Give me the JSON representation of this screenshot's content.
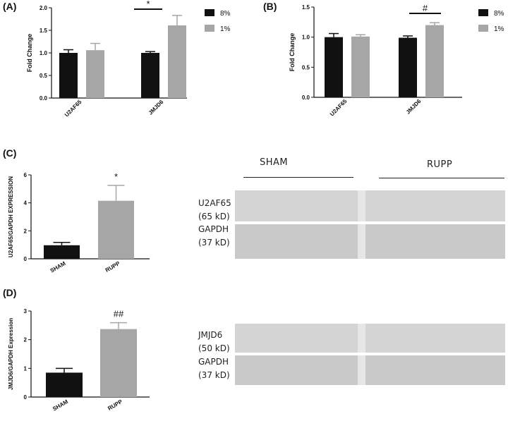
{
  "panel_labels": {
    "a": "(A)",
    "b": "(B)",
    "c": "(C)",
    "d": "(D)"
  },
  "blot": {
    "sham_label": "SHAM",
    "rupp_label": "RUPP",
    "u2af65_name": "U2AF65",
    "u2af65_kd": "(65 kD)",
    "gapdh_name": "GAPDH",
    "gapdh_kd": "(37 kD)",
    "jmjd6_name": "JMJD6",
    "jmjd6_kd": "(50 kD)",
    "gapdh2_name": "GAPDH",
    "gapdh2_kd": "(37 kD)"
  },
  "colors": {
    "black_bar": "#111111",
    "gray_bar": "#a6a6a6"
  },
  "chart_data": [
    {
      "id": "A",
      "type": "bar",
      "title": "",
      "ylabel": "Fold Change",
      "xlabel": "",
      "ylim": [
        0,
        2.0
      ],
      "yticks": [
        "0.0",
        "0.5",
        "1.0",
        "1.5",
        "2.0"
      ],
      "ytick_values": [
        0,
        0.5,
        1.0,
        1.5,
        2.0
      ],
      "categories": [
        "U2AF65",
        "JMJD6"
      ],
      "series": [
        {
          "name": "8%",
          "color": "#111111",
          "values": [
            1.0,
            1.0
          ],
          "errors": [
            0.07,
            0.03
          ]
        },
        {
          "name": "1%",
          "color": "#a6a6a6",
          "values": [
            1.06,
            1.61
          ],
          "errors": [
            0.15,
            0.22
          ]
        }
      ],
      "significance": {
        "category": "JMJD6",
        "symbol": "*"
      },
      "legend": "top-right"
    },
    {
      "id": "B",
      "type": "bar",
      "title": "",
      "ylabel": "Fold Change",
      "xlabel": "",
      "ylim": [
        0,
        1.5
      ],
      "yticks": [
        "0.0",
        "0.5",
        "1.0",
        "1.5"
      ],
      "ytick_values": [
        0,
        0.5,
        1.0,
        1.5
      ],
      "categories": [
        "U2AF65",
        "JMJD6"
      ],
      "series": [
        {
          "name": "8%",
          "color": "#111111",
          "values": [
            1.0,
            0.99
          ],
          "errors": [
            0.06,
            0.03
          ]
        },
        {
          "name": "1%",
          "color": "#a6a6a6",
          "values": [
            1.01,
            1.2
          ],
          "errors": [
            0.03,
            0.04
          ]
        }
      ],
      "significance": {
        "category": "JMJD6",
        "symbol": "#"
      },
      "legend": "top-right"
    },
    {
      "id": "C",
      "type": "bar",
      "title": "",
      "ylabel": "U2AF65/GAPDH EXPRESSION",
      "xlabel": "",
      "ylim": [
        0,
        6
      ],
      "yticks": [
        "0",
        "2",
        "4",
        "6"
      ],
      "ytick_values": [
        0,
        2,
        4,
        6
      ],
      "categories": [
        "SHAM",
        "RUPP"
      ],
      "values": [
        0.97,
        4.15
      ],
      "errors": [
        0.2,
        1.1
      ],
      "colors": [
        "#111111",
        "#a6a6a6"
      ],
      "significance": {
        "category": "RUPP",
        "symbol": "*"
      }
    },
    {
      "id": "D",
      "type": "bar",
      "title": "",
      "ylabel": "JMJD6/GAPDH Expression",
      "xlabel": "",
      "ylim": [
        0,
        3
      ],
      "yticks": [
        "0",
        "1",
        "2",
        "3"
      ],
      "ytick_values": [
        0,
        1,
        2,
        3
      ],
      "categories": [
        "SHAM",
        "RUPP"
      ],
      "values": [
        0.85,
        2.37
      ],
      "errors": [
        0.15,
        0.22
      ],
      "colors": [
        "#111111",
        "#a6a6a6"
      ],
      "significance": {
        "category": "RUPP",
        "symbol": "##"
      }
    }
  ]
}
